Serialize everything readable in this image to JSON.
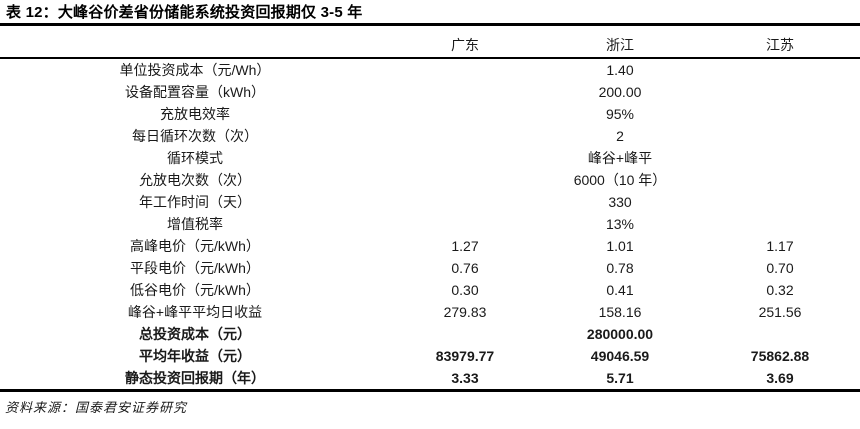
{
  "title": "表 12：大峰谷价差省份储能系统投资回报期仅 3-5 年",
  "source_note": "资料来源：国泰君安证券研究",
  "table": {
    "columns": [
      "广东",
      "浙江",
      "江苏"
    ],
    "rows": [
      {
        "label": "单位投资成本（元/Wh）",
        "gd": "",
        "zj": "1.40",
        "js": "",
        "bold": false
      },
      {
        "label": "设备配置容量（kWh）",
        "gd": "",
        "zj": "200.00",
        "js": "",
        "bold": false
      },
      {
        "label": "充放电效率",
        "gd": "",
        "zj": "95%",
        "js": "",
        "bold": false
      },
      {
        "label": "每日循环次数（次）",
        "gd": "",
        "zj": "2",
        "js": "",
        "bold": false
      },
      {
        "label": "循环模式",
        "gd": "",
        "zj": "峰谷+峰平",
        "js": "",
        "bold": false
      },
      {
        "label": "允放电次数（次）",
        "gd": "",
        "zj": "6000（10 年）",
        "js": "",
        "bold": false
      },
      {
        "label": "年工作时间（天）",
        "gd": "",
        "zj": "330",
        "js": "",
        "bold": false
      },
      {
        "label": "增值税率",
        "gd": "",
        "zj": "13%",
        "js": "",
        "bold": false
      },
      {
        "label": "高峰电价（元/kWh）",
        "gd": "1.27",
        "zj": "1.01",
        "js": "1.17",
        "bold": false
      },
      {
        "label": "平段电价（元/kWh）",
        "gd": "0.76",
        "zj": "0.78",
        "js": "0.70",
        "bold": false
      },
      {
        "label": "低谷电价（元/kWh）",
        "gd": "0.30",
        "zj": "0.41",
        "js": "0.32",
        "bold": false
      },
      {
        "label": "峰谷+峰平平均日收益",
        "gd": "279.83",
        "zj": "158.16",
        "js": "251.56",
        "bold": false
      },
      {
        "label": "总投资成本（元）",
        "gd": "",
        "zj": "280000.00",
        "js": "",
        "bold": true
      },
      {
        "label": "平均年收益（元）",
        "gd": "83979.77",
        "zj": "49046.59",
        "js": "75862.88",
        "bold": true
      },
      {
        "label": "静态投资回报期（年）",
        "gd": "3.33",
        "zj": "5.71",
        "js": "3.69",
        "bold": true
      }
    ]
  }
}
